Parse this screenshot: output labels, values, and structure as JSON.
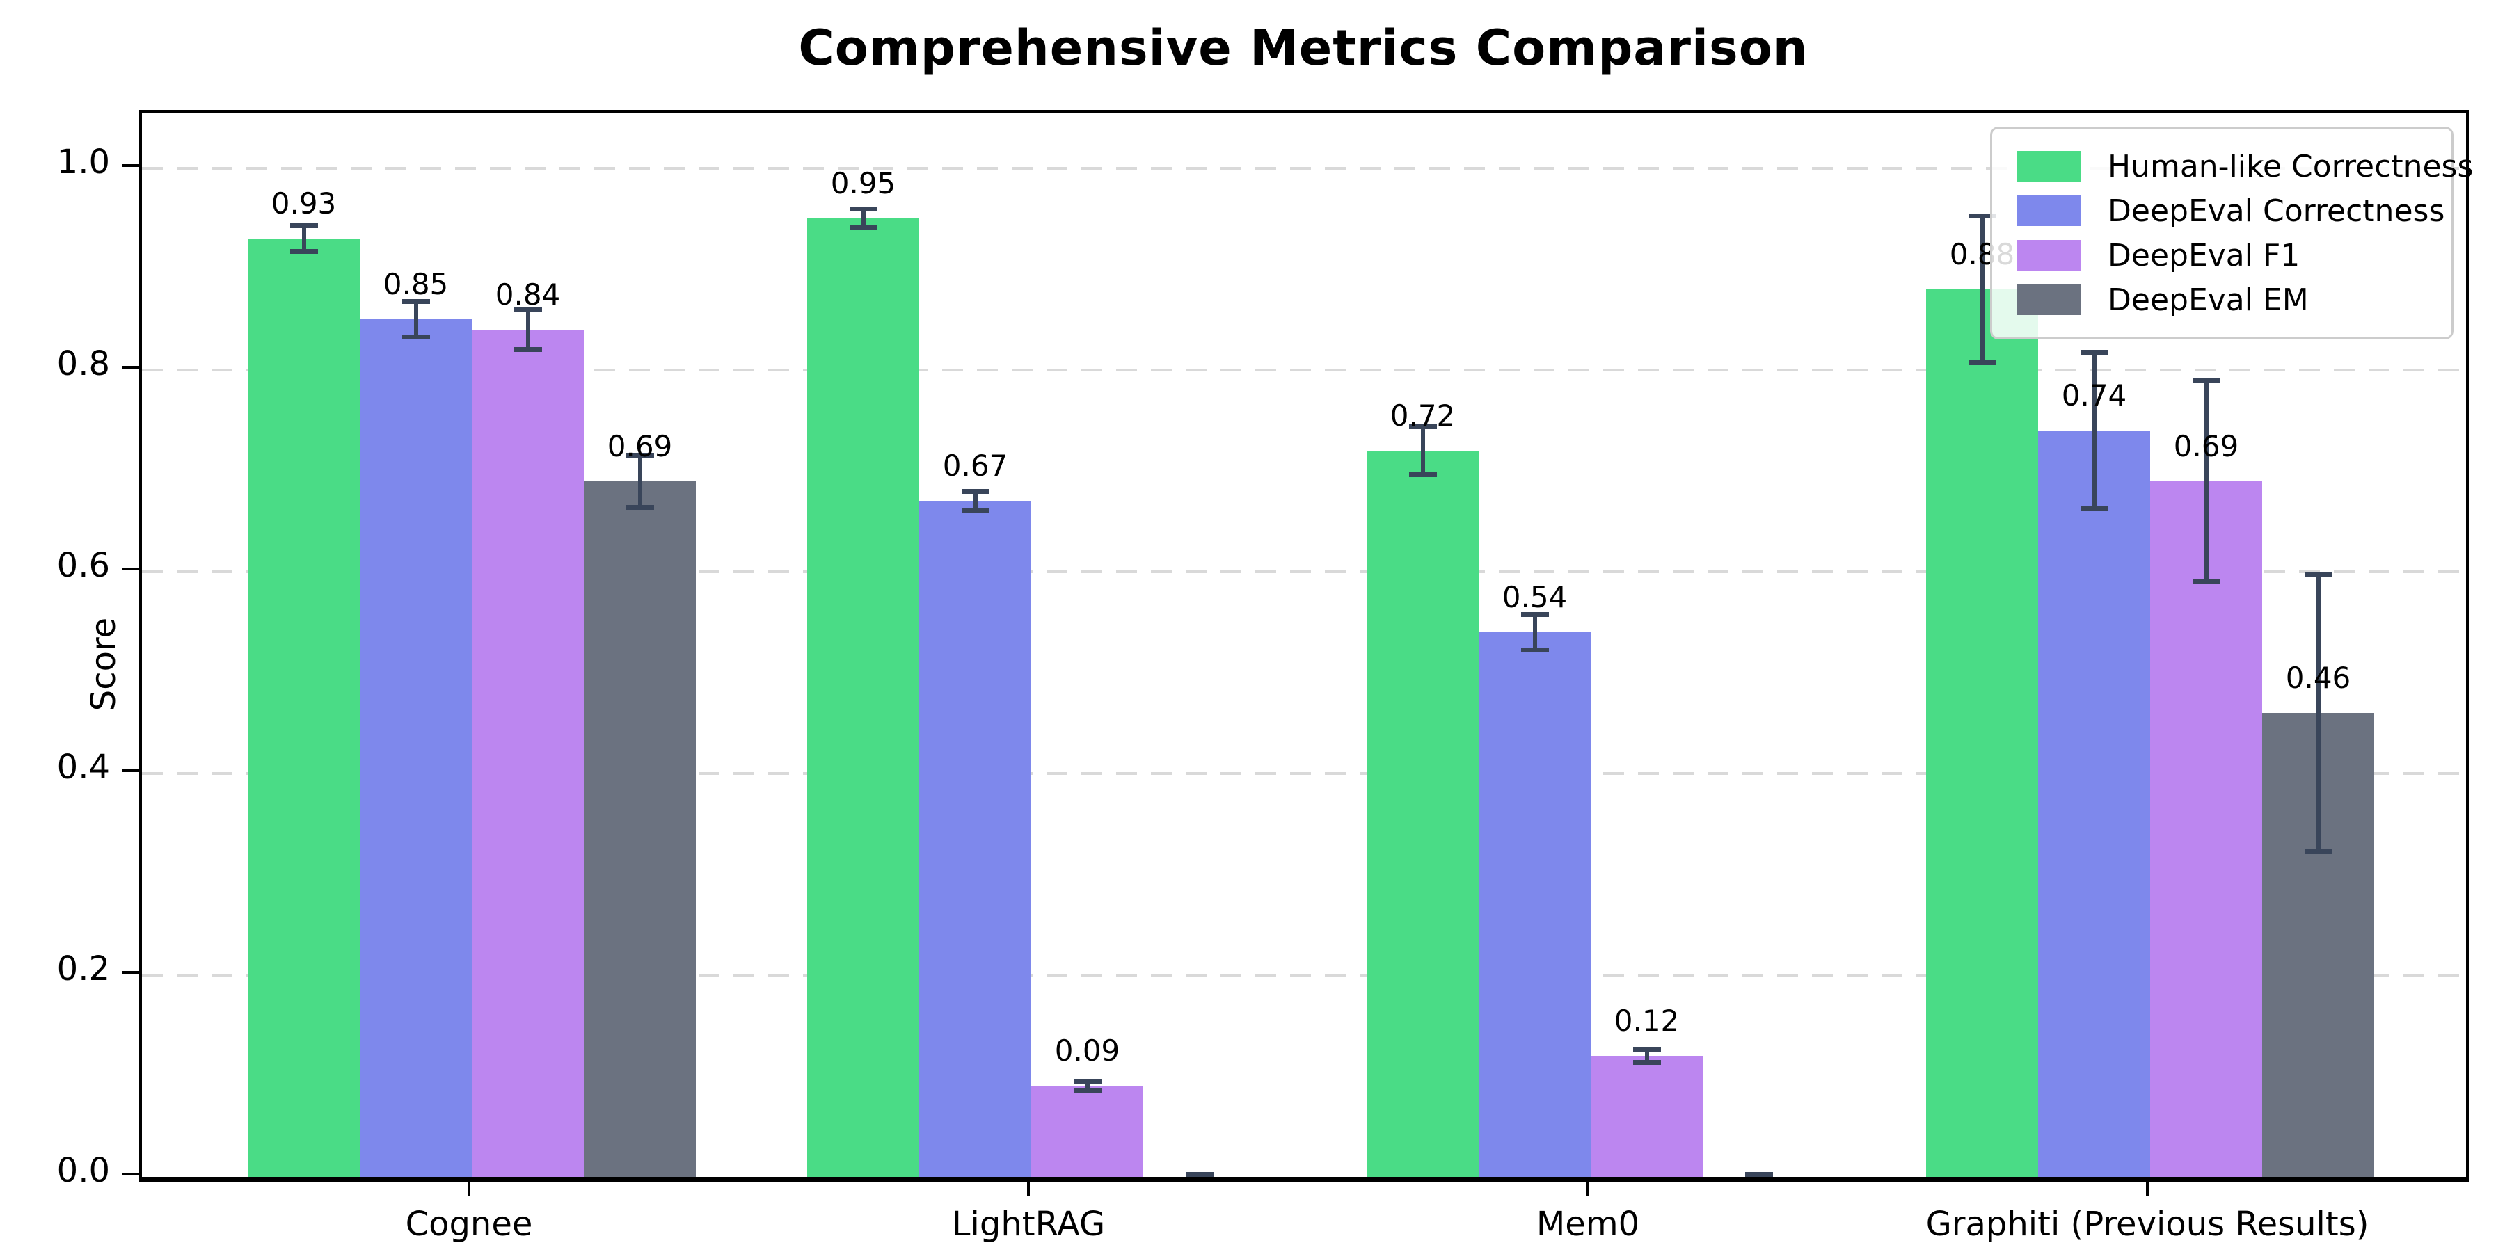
{
  "page": {
    "background": "#ffffff"
  },
  "chart_data": {
    "type": "bar",
    "title": "Comprehensive Metrics Comparison",
    "xlabel": "",
    "ylabel": "Score",
    "categories": [
      "Cognee",
      "LightRAG",
      "Mem0",
      "Graphiti (Previous Results)"
    ],
    "series": [
      {
        "name": "Human-like Correctness",
        "color": "#4adc86",
        "values": [
          0.93,
          0.95,
          0.72,
          0.88
        ],
        "errors": [
          0.015,
          0.012,
          0.026,
          0.075
        ],
        "labels": [
          "0.93",
          "0.95",
          "0.72",
          "0.88"
        ]
      },
      {
        "name": "DeepEval Correctness",
        "color": "#7e88ec",
        "values": [
          0.85,
          0.67,
          0.54,
          0.74
        ],
        "errors": [
          0.02,
          0.012,
          0.02,
          0.08
        ],
        "labels": [
          "0.85",
          "0.67",
          "0.54",
          "0.74"
        ]
      },
      {
        "name": "DeepEval F1",
        "color": "#bc86f0",
        "values": [
          0.84,
          0.09,
          0.12,
          0.69
        ],
        "errors": [
          0.022,
          0.007,
          0.009,
          0.102
        ],
        "labels": [
          "0.84",
          "0.09",
          "0.12",
          "0.69"
        ]
      },
      {
        "name": "DeepEval EM",
        "color": "#6b7280",
        "values": [
          0.69,
          0.0,
          0.0,
          0.46
        ],
        "errors": [
          0.028,
          0.005,
          0.005,
          0.14
        ],
        "labels": [
          "0.69",
          null,
          null,
          "0.46"
        ]
      }
    ],
    "ylim": [
      0,
      1.05
    ],
    "yticks": [
      0.0,
      0.2,
      0.4,
      0.6,
      0.8,
      1.0
    ],
    "ytick_labels": [
      "0.0",
      "0.2",
      "0.4",
      "0.6",
      "0.8",
      "1.0"
    ],
    "grid": "horizontal-dashed",
    "grid_color": "#d9d9d9",
    "legend_position": "top-right",
    "error_bar_color": "#39455a"
  }
}
